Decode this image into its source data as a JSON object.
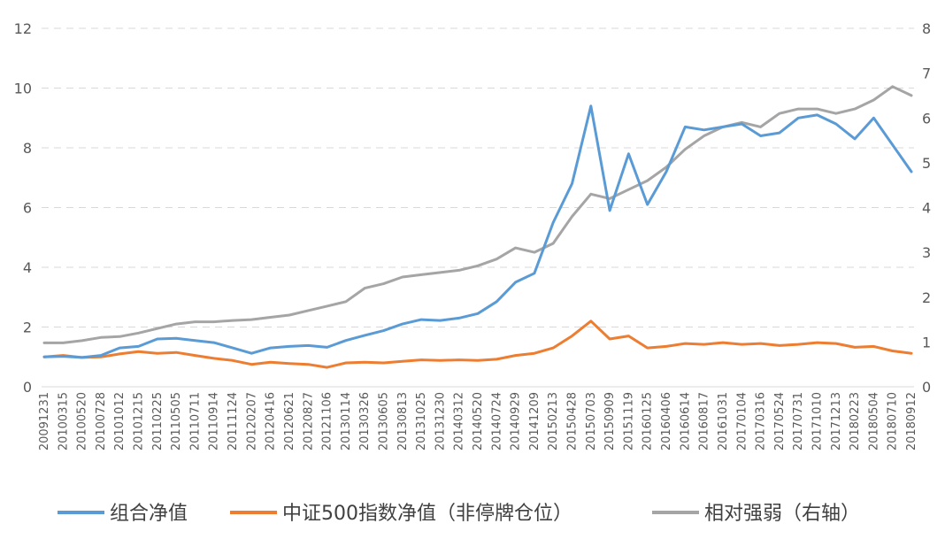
{
  "chart_data": {
    "type": "line",
    "title": "",
    "y_left": {
      "ticks": [
        0,
        2,
        4,
        6,
        8,
        10,
        12
      ],
      "range": [
        0,
        12
      ]
    },
    "y_right": {
      "ticks": [
        0,
        1,
        2,
        3,
        4,
        5,
        6,
        7,
        8
      ],
      "range": [
        0,
        8
      ]
    },
    "grid": "horizontal dashed",
    "legend_position": "bottom",
    "categories": [
      "20091231",
      "20100315",
      "20100520",
      "20100728",
      "20101012",
      "20101215",
      "20110225",
      "20110505",
      "20110711",
      "20110914",
      "20111124",
      "20120207",
      "20120416",
      "20120621",
      "20120827",
      "20121106",
      "20130114",
      "20130326",
      "20130605",
      "20130813",
      "20131025",
      "20131230",
      "20140312",
      "20140520",
      "20140724",
      "20140929",
      "20141209",
      "20150213",
      "20150428",
      "20150703",
      "20150909",
      "20151119",
      "20160125",
      "20160406",
      "20160614",
      "20160817",
      "20161031",
      "20170104",
      "20170316",
      "20170524",
      "20170731",
      "20171010",
      "20171213",
      "20180223",
      "20180504",
      "20180710",
      "20180912"
    ],
    "series": [
      {
        "name": "组合净值",
        "axis": "left",
        "color": "#5B9BD5",
        "values": [
          1.0,
          1.02,
          0.98,
          1.05,
          1.3,
          1.35,
          1.6,
          1.62,
          1.55,
          1.48,
          1.3,
          1.12,
          1.3,
          1.35,
          1.38,
          1.32,
          1.55,
          1.72,
          1.88,
          2.1,
          2.25,
          2.22,
          2.3,
          2.45,
          2.85,
          3.5,
          3.8,
          5.5,
          6.8,
          9.4,
          5.9,
          7.8,
          6.1,
          7.2,
          8.7,
          8.6,
          8.7,
          8.8,
          8.4,
          8.5,
          9.0,
          9.1,
          8.8,
          8.3,
          9.0,
          8.1,
          7.2
        ]
      },
      {
        "name": "中证500指数净值（非停牌仓位）",
        "axis": "left",
        "color": "#ED7D31",
        "values": [
          1.0,
          1.05,
          0.98,
          1.0,
          1.1,
          1.18,
          1.12,
          1.15,
          1.05,
          0.95,
          0.88,
          0.75,
          0.82,
          0.78,
          0.75,
          0.65,
          0.8,
          0.82,
          0.8,
          0.85,
          0.9,
          0.88,
          0.9,
          0.88,
          0.92,
          1.05,
          1.12,
          1.3,
          1.7,
          2.2,
          1.6,
          1.7,
          1.3,
          1.35,
          1.45,
          1.42,
          1.48,
          1.42,
          1.45,
          1.38,
          1.42,
          1.48,
          1.45,
          1.32,
          1.35,
          1.2,
          1.12
        ]
      },
      {
        "name": "相对强弱（右轴）",
        "axis": "right",
        "color": "#A5A5A5",
        "values": [
          0.98,
          0.98,
          1.03,
          1.1,
          1.12,
          1.2,
          1.3,
          1.4,
          1.45,
          1.45,
          1.48,
          1.5,
          1.55,
          1.6,
          1.7,
          1.8,
          1.9,
          2.2,
          2.3,
          2.45,
          2.5,
          2.55,
          2.6,
          2.7,
          2.85,
          3.1,
          3.0,
          3.2,
          3.8,
          4.3,
          4.2,
          4.4,
          4.6,
          4.9,
          5.3,
          5.6,
          5.8,
          5.9,
          5.8,
          6.1,
          6.2,
          6.2,
          6.1,
          6.2,
          6.4,
          6.7,
          6.5
        ]
      }
    ]
  }
}
